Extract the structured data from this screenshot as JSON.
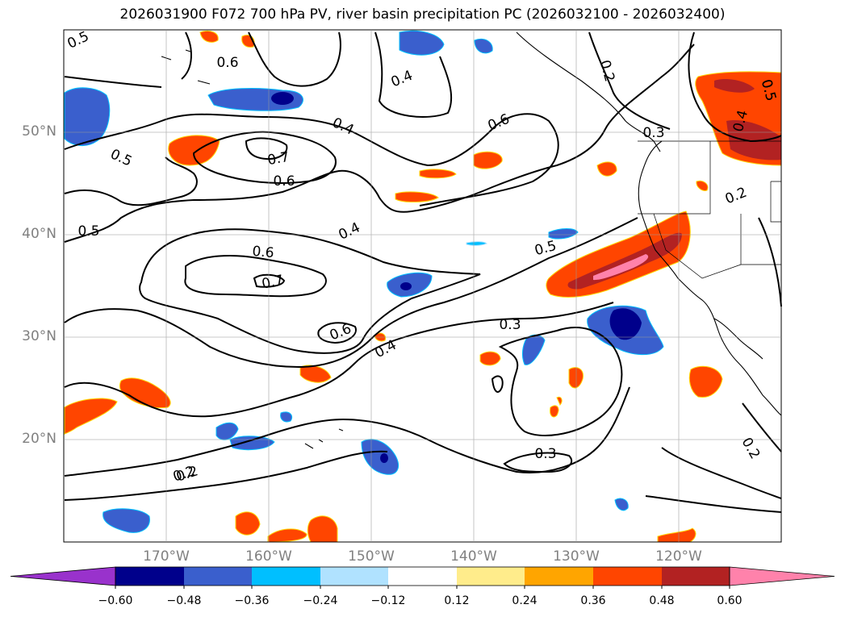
{
  "title": "2026031900 F072 700 hPa PV, river basin precipitation PC (2026032100 - 2026032400)",
  "lat_labels": [
    "50°N",
    "40°N",
    "30°N",
    "20°N"
  ],
  "lon_labels": [
    "170°W",
    "160°W",
    "150°W",
    "140°W",
    "130°W",
    "120°W"
  ],
  "contour_labels": [
    "0.5",
    "0.6",
    "0.4",
    "0.2",
    "0.3",
    "0.5",
    "0.6",
    "0.4",
    "0.5",
    "0.7",
    "0.6",
    "0.5",
    "0.4",
    "0.6",
    "0.7",
    "0.6",
    "0.4",
    "0.5",
    "0.3",
    "0.2",
    "0.3",
    "0.2",
    "0.2",
    "0.4",
    "0.5",
    "0.2"
  ],
  "colorbar": {
    "ticks": [
      "−0.60",
      "−0.48",
      "−0.36",
      "−0.24",
      "−0.12",
      "0.12",
      "0.24",
      "0.36",
      "0.48",
      "0.60"
    ],
    "colors": [
      "#9932cc",
      "#00008b",
      "#3a5fcd",
      "#00bfff",
      "#b0e2ff",
      "#ffffff",
      "#ffec8b",
      "#ffa500",
      "#ff4500",
      "#b22222",
      "#ff82ab"
    ]
  },
  "map": {
    "lon_range": [
      -180,
      -110
    ],
    "lat_range": [
      10,
      60
    ],
    "grid": true,
    "projection": "PlateCarree"
  }
}
